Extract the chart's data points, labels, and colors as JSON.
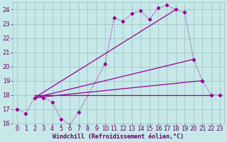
{
  "xlabel": "Windchill (Refroidissement éolien,°C)",
  "background_color": "#c6e8e8",
  "grid_color": "#9dbdbd",
  "line_color": "#990099",
  "xlim": [
    -0.5,
    23.5
  ],
  "ylim": [
    16.0,
    24.5
  ],
  "yticks": [
    16,
    17,
    18,
    19,
    20,
    21,
    22,
    23,
    24
  ],
  "xticks": [
    0,
    1,
    2,
    3,
    4,
    5,
    6,
    7,
    8,
    9,
    10,
    11,
    12,
    13,
    14,
    15,
    16,
    17,
    18,
    19,
    20,
    21,
    22,
    23
  ],
  "series1_x": [
    0,
    1,
    2,
    3,
    4,
    5,
    6,
    7,
    10,
    11,
    12,
    13,
    14,
    15,
    16,
    17,
    18,
    19,
    20,
    21,
    22,
    23
  ],
  "series1_y": [
    17.0,
    16.7,
    17.8,
    17.8,
    17.5,
    16.3,
    15.9,
    16.8,
    20.2,
    23.4,
    23.2,
    23.7,
    23.9,
    23.3,
    24.1,
    24.3,
    24.0,
    23.8,
    20.5,
    19.0,
    18.0,
    18.0
  ],
  "line2_x": [
    2,
    18
  ],
  "line2_y": [
    17.8,
    24.0
  ],
  "line3_x": [
    2,
    20
  ],
  "line3_y": [
    17.8,
    20.5
  ],
  "line4_x": [
    2,
    21
  ],
  "line4_y": [
    17.8,
    19.0
  ],
  "flat_line_x": [
    2,
    22
  ],
  "flat_line_y": [
    18.0,
    18.0
  ],
  "font_color": "#660066",
  "xlabel_fontsize": 6,
  "tick_fontsize": 6
}
